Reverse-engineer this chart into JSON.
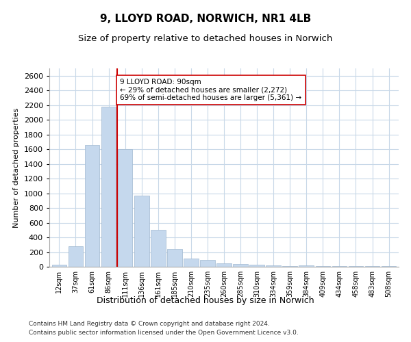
{
  "title": "9, LLOYD ROAD, NORWICH, NR1 4LB",
  "subtitle": "Size of property relative to detached houses in Norwich",
  "xlabel": "Distribution of detached houses by size in Norwich",
  "ylabel": "Number of detached properties",
  "categories": [
    "12sqm",
    "37sqm",
    "61sqm",
    "86sqm",
    "111sqm",
    "136sqm",
    "161sqm",
    "185sqm",
    "210sqm",
    "235sqm",
    "260sqm",
    "285sqm",
    "310sqm",
    "334sqm",
    "359sqm",
    "384sqm",
    "409sqm",
    "434sqm",
    "458sqm",
    "483sqm",
    "508sqm"
  ],
  "values": [
    30,
    280,
    1660,
    2180,
    1600,
    970,
    500,
    245,
    110,
    90,
    50,
    40,
    25,
    20,
    5,
    15,
    5,
    5,
    5,
    5,
    5
  ],
  "bar_color": "#c5d8ed",
  "bar_edge_color": "#a0b8d0",
  "red_line_index": 3,
  "red_line_color": "#cc0000",
  "annotation_text": "9 LLOYD ROAD: 90sqm\n← 29% of detached houses are smaller (2,272)\n69% of semi-detached houses are larger (5,361) →",
  "annotation_box_color": "#ffffff",
  "annotation_box_edge": "#cc0000",
  "ylim": [
    0,
    2700
  ],
  "yticks": [
    0,
    200,
    400,
    600,
    800,
    1000,
    1200,
    1400,
    1600,
    1800,
    2000,
    2200,
    2400,
    2600
  ],
  "footer1": "Contains HM Land Registry data © Crown copyright and database right 2024.",
  "footer2": "Contains public sector information licensed under the Open Government Licence v3.0.",
  "bg_color": "#ffffff",
  "grid_color": "#c8d8e8",
  "title_fontsize": 11,
  "subtitle_fontsize": 9.5,
  "bar_width": 0.9
}
